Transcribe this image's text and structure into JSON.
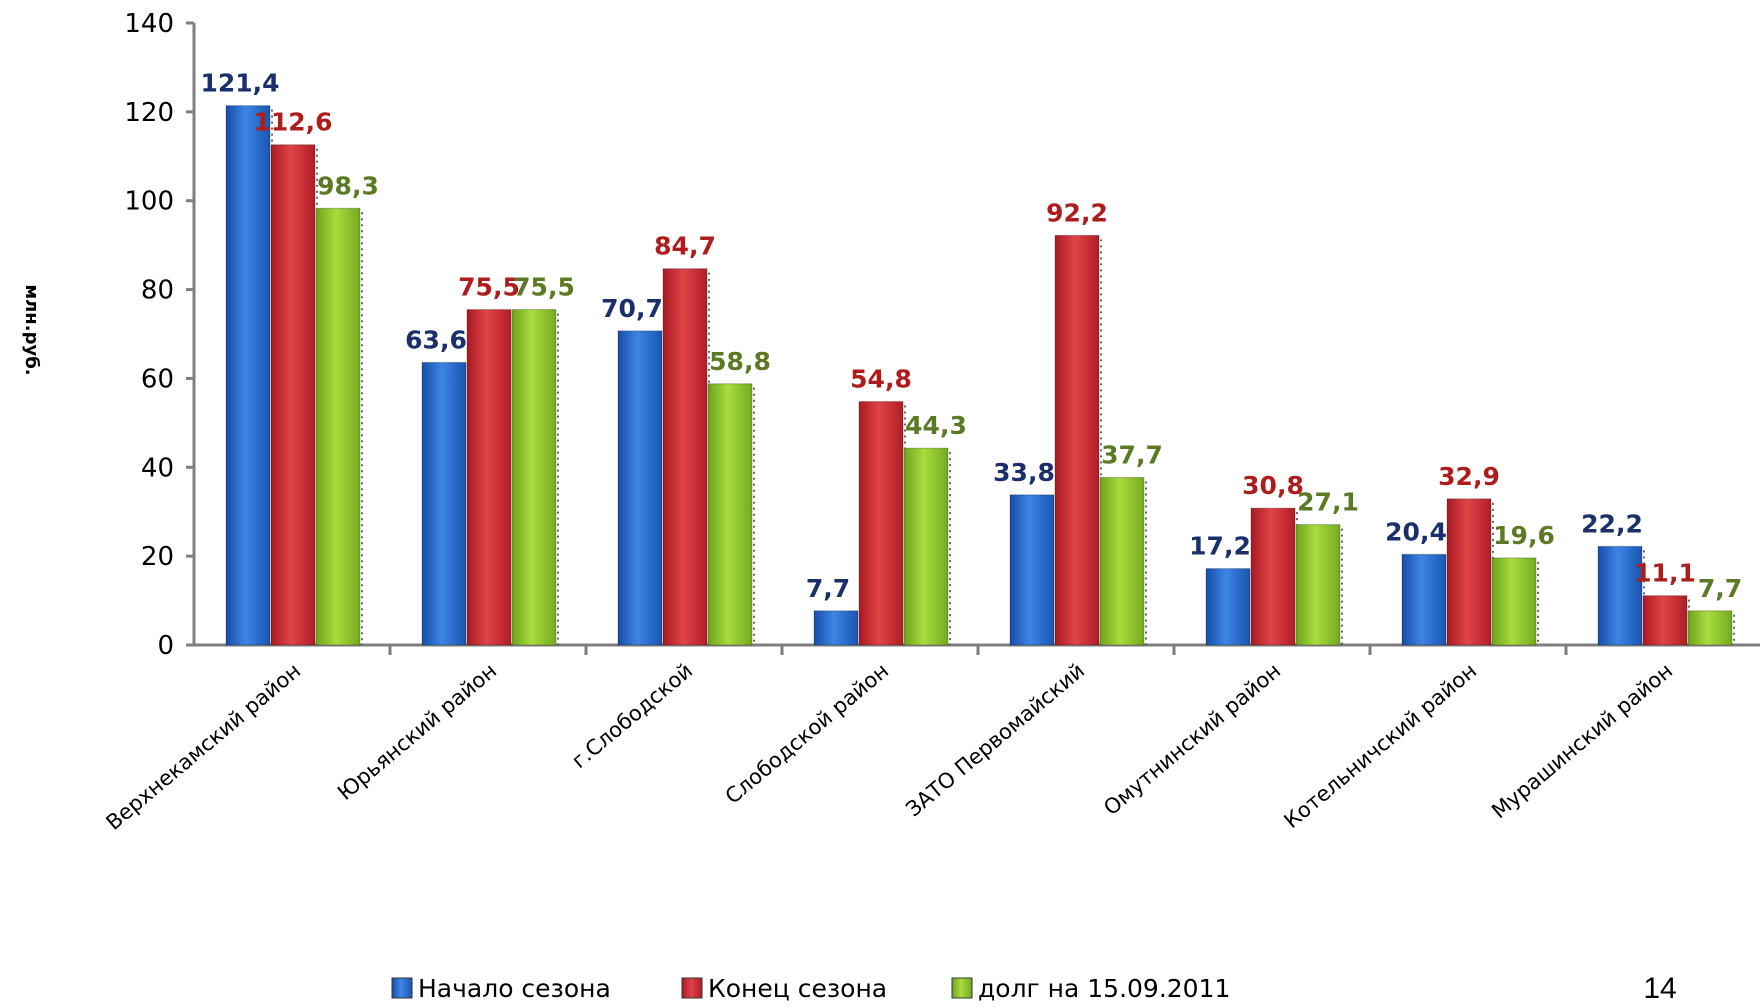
{
  "page_number": "14",
  "colors": {
    "start": "#1f63c8",
    "end": "#c8252d",
    "debt": "#8cc42a",
    "label_start": "#1a2f6b",
    "label_end": "#b01c1c",
    "label_debt": "#5c7a23"
  },
  "chart_data": {
    "type": "bar",
    "title": "",
    "xlabel": "",
    "ylabel": "млн.руб.",
    "ylim": [
      0,
      140
    ],
    "yticks": [
      "0",
      "20",
      "40",
      "60",
      "80",
      "100",
      "120",
      "140"
    ],
    "grid": false,
    "legend_position": "bottom",
    "categories": [
      "Верхнекамский район",
      "Юрьянский район",
      "г.Слободской",
      "Слободской район",
      "ЗАТО Первомайский",
      "Омутнинский район",
      "Котельничский район",
      "Мурашинский район"
    ],
    "series": [
      {
        "name": "Начало сезона",
        "values": [
          121.4,
          63.6,
          70.7,
          7.7,
          33.8,
          17.2,
          20.4,
          22.2
        ],
        "labels": [
          "121,4",
          "63,6",
          "70,7",
          "7,7",
          "33,8",
          "17,2",
          "20,4",
          "22,2"
        ]
      },
      {
        "name": "Конец сезона",
        "values": [
          112.6,
          75.5,
          84.7,
          54.8,
          92.2,
          30.8,
          32.9,
          11.1
        ],
        "labels": [
          "112,6",
          "75,5",
          "84,7",
          "54,8",
          "92,2",
          "30,8",
          "32,9",
          "11,1"
        ]
      },
      {
        "name": "долг на 15.09.2011",
        "values": [
          98.3,
          75.5,
          58.8,
          44.3,
          37.7,
          27.1,
          19.6,
          7.7
        ],
        "labels": [
          "98,3",
          "75,5",
          "58,8",
          "44,3",
          "37,7",
          "27,1",
          "19,6",
          "7,7"
        ]
      }
    ]
  }
}
